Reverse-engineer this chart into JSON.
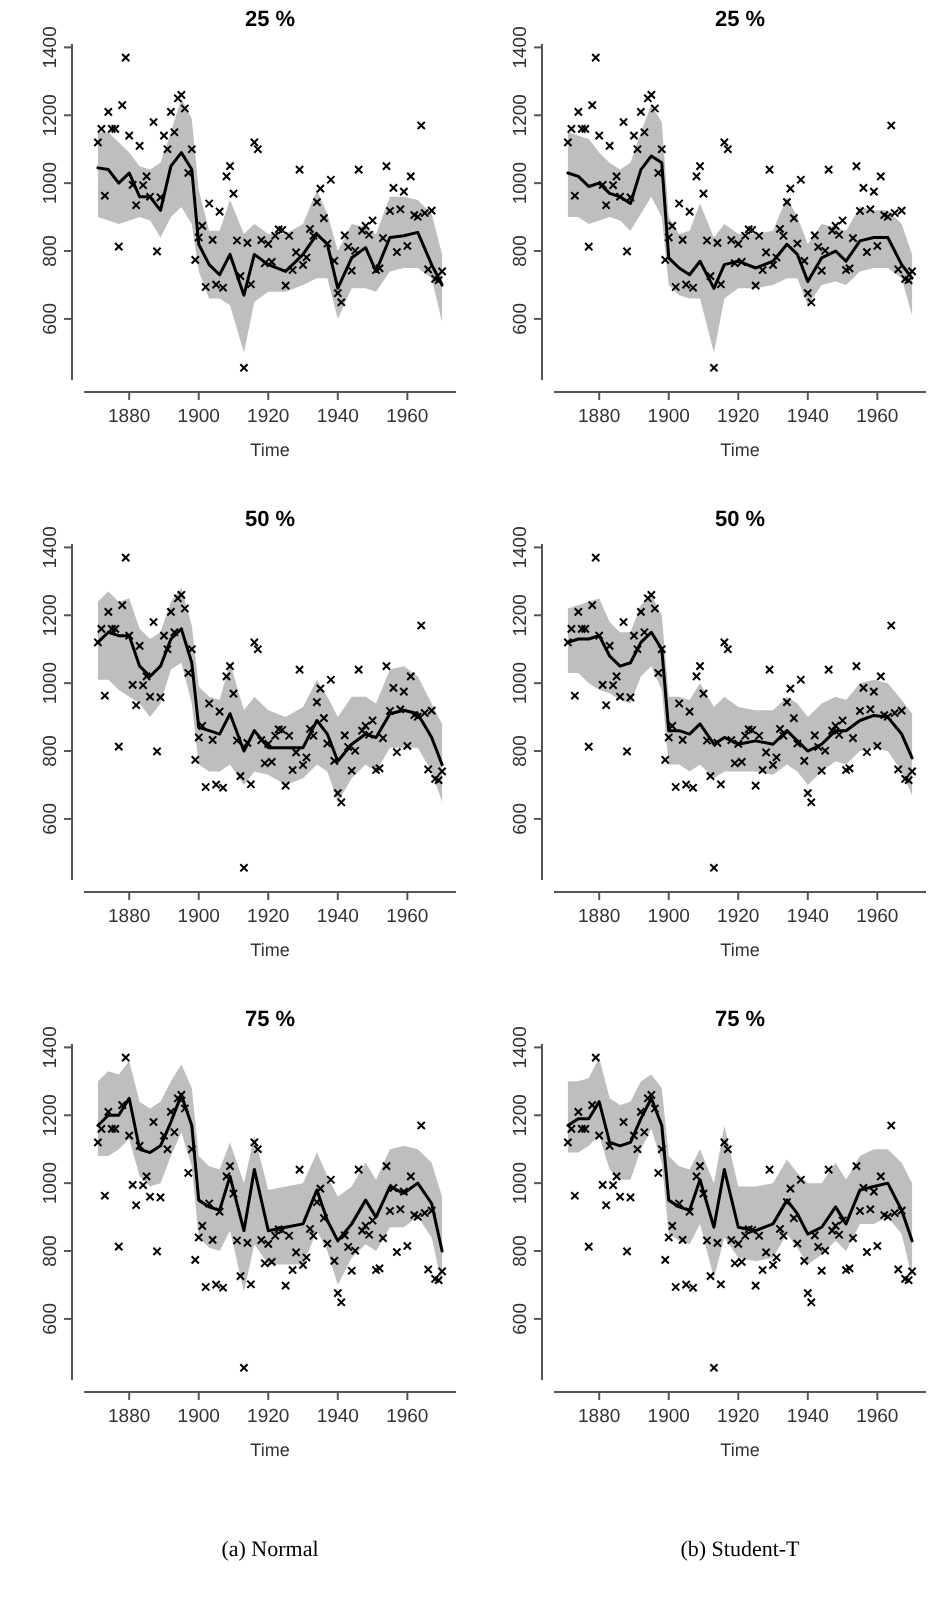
{
  "chart_data": [
    {
      "type": "line",
      "title": "25 %",
      "xlabel": "Time",
      "xlim": [
        1867,
        1974
      ],
      "ylim": [
        420,
        1410
      ],
      "xticks": [
        1880,
        1900,
        1920,
        1940,
        1960
      ],
      "yticks": [
        600,
        800,
        1000,
        1200,
        1400
      ],
      "series": [
        {
          "type": "scatter",
          "marker": "cross",
          "color": "#000000",
          "x": [
            1871,
            1872,
            1873,
            1874,
            1875,
            1876,
            1877,
            1878,
            1879,
            1880,
            1881,
            1882,
            1883,
            1884,
            1885,
            1886,
            1887,
            1888,
            1889,
            1890,
            1891,
            1892,
            1893,
            1894,
            1895,
            1896,
            1897,
            1898,
            1899,
            1900,
            1901,
            1902,
            1903,
            1904,
            1905,
            1906,
            1907,
            1908,
            1909,
            1910,
            1911,
            1912,
            1913,
            1914,
            1915,
            1916,
            1917,
            1918,
            1919,
            1920,
            1921,
            1922,
            1923,
            1924,
            1925,
            1926,
            1927,
            1928,
            1929,
            1930,
            1931,
            1932,
            1933,
            1934,
            1935,
            1936,
            1937,
            1938,
            1939,
            1940,
            1941,
            1942,
            1943,
            1944,
            1945,
            1946,
            1947,
            1948,
            1949,
            1950,
            1951,
            1952,
            1953,
            1954,
            1955,
            1956,
            1957,
            1958,
            1959,
            1960,
            1961,
            1962,
            1963,
            1964,
            1965,
            1966,
            1967,
            1968,
            1969,
            1970
          ],
          "values": [
            1120,
            1160,
            963,
            1210,
            1160,
            1160,
            813,
            1230,
            1370,
            1140,
            995,
            935,
            1110,
            994,
            1020,
            960,
            1180,
            799,
            958,
            1140,
            1100,
            1210,
            1150,
            1250,
            1260,
            1220,
            1030,
            1100,
            774,
            840,
            874,
            694,
            940,
            833,
            701,
            916,
            692,
            1020,
            1050,
            969,
            831,
            726,
            456,
            824,
            702,
            1120,
            1100,
            832,
            764,
            821,
            768,
            845,
            864,
            862,
            698,
            845,
            744,
            796,
            1040,
            759,
            781,
            865,
            845,
            944,
            984,
            897,
            822,
            1010,
            771,
            676,
            649,
            846,
            812,
            742,
            801,
            1040,
            860,
            874,
            848,
            890,
            744,
            749,
            838,
            1050,
            918,
            986,
            797,
            923,
            975,
            815,
            1020,
            906,
            901,
            1170,
            912,
            746,
            919,
            718,
            714,
            740
          ]
        },
        {
          "type": "line",
          "color": "#000000",
          "x": [
            1871,
            1874,
            1877,
            1880,
            1883,
            1886,
            1889,
            1892,
            1895,
            1898,
            1900,
            1903,
            1906,
            1909,
            1913,
            1916,
            1920,
            1925,
            1930,
            1934,
            1937,
            1940,
            1944,
            1948,
            1951,
            1955,
            1959,
            1963,
            1967,
            1970
          ],
          "values": [
            1045,
            1040,
            1000,
            1030,
            960,
            960,
            920,
            1050,
            1090,
            1040,
            820,
            760,
            730,
            790,
            670,
            790,
            760,
            740,
            790,
            850,
            820,
            690,
            780,
            810,
            740,
            840,
            845,
            855,
            760,
            700
          ],
          "lower": [
            900,
            890,
            880,
            890,
            900,
            890,
            840,
            900,
            930,
            880,
            740,
            660,
            660,
            640,
            500,
            650,
            680,
            680,
            700,
            720,
            720,
            600,
            690,
            690,
            680,
            740,
            750,
            750,
            720,
            590
          ],
          "upper": [
            1150,
            1150,
            1120,
            1090,
            1050,
            1040,
            1060,
            1150,
            1250,
            1190,
            980,
            860,
            860,
            950,
            850,
            880,
            850,
            850,
            880,
            980,
            910,
            800,
            880,
            870,
            850,
            960,
            960,
            950,
            910,
            790
          ]
        }
      ]
    },
    {
      "type": "line",
      "title": "25 %",
      "xlabel": "Time",
      "xlim": [
        1867,
        1974
      ],
      "ylim": [
        420,
        1410
      ],
      "xticks": [
        1880,
        1900,
        1920,
        1940,
        1960
      ],
      "yticks": [
        600,
        800,
        1000,
        1200,
        1400
      ],
      "series": [
        {
          "type": "scatter",
          "marker": "cross",
          "color": "#000000",
          "x": [
            1871,
            1872,
            1873,
            1874,
            1875,
            1876,
            1877,
            1878,
            1879,
            1880,
            1881,
            1882,
            1883,
            1884,
            1885,
            1886,
            1887,
            1888,
            1889,
            1890,
            1891,
            1892,
            1893,
            1894,
            1895,
            1896,
            1897,
            1898,
            1899,
            1900,
            1901,
            1902,
            1903,
            1904,
            1905,
            1906,
            1907,
            1908,
            1909,
            1910,
            1911,
            1912,
            1913,
            1914,
            1915,
            1916,
            1917,
            1918,
            1919,
            1920,
            1921,
            1922,
            1923,
            1924,
            1925,
            1926,
            1927,
            1928,
            1929,
            1930,
            1931,
            1932,
            1933,
            1934,
            1935,
            1936,
            1937,
            1938,
            1939,
            1940,
            1941,
            1942,
            1943,
            1944,
            1945,
            1946,
            1947,
            1948,
            1949,
            1950,
            1951,
            1952,
            1953,
            1954,
            1955,
            1956,
            1957,
            1958,
            1959,
            1960,
            1961,
            1962,
            1963,
            1964,
            1965,
            1966,
            1967,
            1968,
            1969,
            1970
          ],
          "values": [
            1120,
            1160,
            963,
            1210,
            1160,
            1160,
            813,
            1230,
            1370,
            1140,
            995,
            935,
            1110,
            994,
            1020,
            960,
            1180,
            799,
            958,
            1140,
            1100,
            1210,
            1150,
            1250,
            1260,
            1220,
            1030,
            1100,
            774,
            840,
            874,
            694,
            940,
            833,
            701,
            916,
            692,
            1020,
            1050,
            969,
            831,
            726,
            456,
            824,
            702,
            1120,
            1100,
            832,
            764,
            821,
            768,
            845,
            864,
            862,
            698,
            845,
            744,
            796,
            1040,
            759,
            781,
            865,
            845,
            944,
            984,
            897,
            822,
            1010,
            771,
            676,
            649,
            846,
            812,
            742,
            801,
            1040,
            860,
            874,
            848,
            890,
            744,
            749,
            838,
            1050,
            918,
            986,
            797,
            923,
            975,
            815,
            1020,
            906,
            901,
            1170,
            912,
            746,
            919,
            718,
            714,
            740
          ]
        },
        {
          "type": "line",
          "color": "#000000",
          "x": [
            1871,
            1874,
            1877,
            1880,
            1883,
            1886,
            1889,
            1892,
            1895,
            1898,
            1900,
            1903,
            1906,
            1909,
            1913,
            1916,
            1920,
            1925,
            1930,
            1934,
            1937,
            1940,
            1944,
            1948,
            1951,
            1955,
            1959,
            1963,
            1967,
            1970
          ],
          "values": [
            1030,
            1020,
            990,
            1000,
            970,
            960,
            940,
            1040,
            1080,
            1060,
            780,
            750,
            730,
            770,
            690,
            760,
            770,
            750,
            770,
            820,
            790,
            710,
            780,
            800,
            770,
            830,
            840,
            840,
            760,
            720
          ],
          "lower": [
            900,
            900,
            880,
            890,
            900,
            890,
            860,
            910,
            960,
            900,
            700,
            670,
            660,
            660,
            500,
            660,
            690,
            690,
            700,
            720,
            720,
            640,
            700,
            710,
            700,
            740,
            750,
            750,
            720,
            610
          ],
          "upper": [
            1150,
            1140,
            1130,
            1090,
            1060,
            1040,
            1060,
            1150,
            1230,
            1180,
            900,
            850,
            860,
            940,
            840,
            880,
            850,
            850,
            860,
            960,
            900,
            820,
            880,
            870,
            860,
            930,
            920,
            920,
            880,
            790
          ]
        }
      ]
    },
    {
      "type": "line",
      "title": "50 %",
      "xlabel": "Time",
      "xlim": [
        1867,
        1974
      ],
      "ylim": [
        420,
        1410
      ],
      "xticks": [
        1880,
        1900,
        1920,
        1940,
        1960
      ],
      "yticks": [
        600,
        800,
        1000,
        1200,
        1400
      ],
      "series": [
        {
          "type": "scatter",
          "marker": "cross",
          "color": "#000000",
          "x": [
            1871,
            1872,
            1873,
            1874,
            1875,
            1876,
            1877,
            1878,
            1879,
            1880,
            1881,
            1882,
            1883,
            1884,
            1885,
            1886,
            1887,
            1888,
            1889,
            1890,
            1891,
            1892,
            1893,
            1894,
            1895,
            1896,
            1897,
            1898,
            1899,
            1900,
            1901,
            1902,
            1903,
            1904,
            1905,
            1906,
            1907,
            1908,
            1909,
            1910,
            1911,
            1912,
            1913,
            1914,
            1915,
            1916,
            1917,
            1918,
            1919,
            1920,
            1921,
            1922,
            1923,
            1924,
            1925,
            1926,
            1927,
            1928,
            1929,
            1930,
            1931,
            1932,
            1933,
            1934,
            1935,
            1936,
            1937,
            1938,
            1939,
            1940,
            1941,
            1942,
            1943,
            1944,
            1945,
            1946,
            1947,
            1948,
            1949,
            1950,
            1951,
            1952,
            1953,
            1954,
            1955,
            1956,
            1957,
            1958,
            1959,
            1960,
            1961,
            1962,
            1963,
            1964,
            1965,
            1966,
            1967,
            1968,
            1969,
            1970
          ],
          "values": [
            1120,
            1160,
            963,
            1210,
            1160,
            1160,
            813,
            1230,
            1370,
            1140,
            995,
            935,
            1110,
            994,
            1020,
            960,
            1180,
            799,
            958,
            1140,
            1100,
            1210,
            1150,
            1250,
            1260,
            1220,
            1030,
            1100,
            774,
            840,
            874,
            694,
            940,
            833,
            701,
            916,
            692,
            1020,
            1050,
            969,
            831,
            726,
            456,
            824,
            702,
            1120,
            1100,
            832,
            764,
            821,
            768,
            845,
            864,
            862,
            698,
            845,
            744,
            796,
            1040,
            759,
            781,
            865,
            845,
            944,
            984,
            897,
            822,
            1010,
            771,
            676,
            649,
            846,
            812,
            742,
            801,
            1040,
            860,
            874,
            848,
            890,
            744,
            749,
            838,
            1050,
            918,
            986,
            797,
            923,
            975,
            815,
            1020,
            906,
            901,
            1170,
            912,
            746,
            919,
            718,
            714,
            740
          ]
        },
        {
          "type": "line",
          "color": "#000000",
          "x": [
            1871,
            1874,
            1877,
            1880,
            1883,
            1886,
            1889,
            1892,
            1895,
            1898,
            1900,
            1903,
            1906,
            1909,
            1913,
            1916,
            1920,
            1925,
            1930,
            1934,
            1937,
            1940,
            1944,
            1948,
            1951,
            1955,
            1959,
            1963,
            1967,
            1970
          ],
          "values": [
            1120,
            1150,
            1140,
            1140,
            1050,
            1020,
            1050,
            1130,
            1160,
            1060,
            870,
            860,
            850,
            910,
            800,
            860,
            810,
            810,
            810,
            890,
            850,
            770,
            820,
            850,
            840,
            910,
            920,
            910,
            840,
            760
          ],
          "lower": [
            1010,
            1010,
            980,
            960,
            940,
            900,
            940,
            1040,
            1060,
            940,
            760,
            740,
            740,
            760,
            700,
            740,
            730,
            700,
            720,
            760,
            740,
            650,
            720,
            760,
            740,
            810,
            810,
            810,
            740,
            650
          ],
          "upper": [
            1240,
            1270,
            1240,
            1250,
            1160,
            1130,
            1150,
            1240,
            1280,
            1170,
            990,
            960,
            950,
            1060,
            920,
            960,
            920,
            900,
            930,
            1010,
            960,
            900,
            960,
            960,
            940,
            1040,
            1050,
            1020,
            940,
            880
          ]
        }
      ]
    },
    {
      "type": "line",
      "title": "50 %",
      "xlabel": "Time",
      "xlim": [
        1867,
        1974
      ],
      "ylim": [
        420,
        1410
      ],
      "xticks": [
        1880,
        1900,
        1920,
        1940,
        1960
      ],
      "yticks": [
        600,
        800,
        1000,
        1200,
        1400
      ],
      "series": [
        {
          "type": "scatter",
          "marker": "cross",
          "color": "#000000",
          "x": [
            1871,
            1872,
            1873,
            1874,
            1875,
            1876,
            1877,
            1878,
            1879,
            1880,
            1881,
            1882,
            1883,
            1884,
            1885,
            1886,
            1887,
            1888,
            1889,
            1890,
            1891,
            1892,
            1893,
            1894,
            1895,
            1896,
            1897,
            1898,
            1899,
            1900,
            1901,
            1902,
            1903,
            1904,
            1905,
            1906,
            1907,
            1908,
            1909,
            1910,
            1911,
            1912,
            1913,
            1914,
            1915,
            1916,
            1917,
            1918,
            1919,
            1920,
            1921,
            1922,
            1923,
            1924,
            1925,
            1926,
            1927,
            1928,
            1929,
            1930,
            1931,
            1932,
            1933,
            1934,
            1935,
            1936,
            1937,
            1938,
            1939,
            1940,
            1941,
            1942,
            1943,
            1944,
            1945,
            1946,
            1947,
            1948,
            1949,
            1950,
            1951,
            1952,
            1953,
            1954,
            1955,
            1956,
            1957,
            1958,
            1959,
            1960,
            1961,
            1962,
            1963,
            1964,
            1965,
            1966,
            1967,
            1968,
            1969,
            1970
          ],
          "values": [
            1120,
            1160,
            963,
            1210,
            1160,
            1160,
            813,
            1230,
            1370,
            1140,
            995,
            935,
            1110,
            994,
            1020,
            960,
            1180,
            799,
            958,
            1140,
            1100,
            1210,
            1150,
            1250,
            1260,
            1220,
            1030,
            1100,
            774,
            840,
            874,
            694,
            940,
            833,
            701,
            916,
            692,
            1020,
            1050,
            969,
            831,
            726,
            456,
            824,
            702,
            1120,
            1100,
            832,
            764,
            821,
            768,
            845,
            864,
            862,
            698,
            845,
            744,
            796,
            1040,
            759,
            781,
            865,
            845,
            944,
            984,
            897,
            822,
            1010,
            771,
            676,
            649,
            846,
            812,
            742,
            801,
            1040,
            860,
            874,
            848,
            890,
            744,
            749,
            838,
            1050,
            918,
            986,
            797,
            923,
            975,
            815,
            1020,
            906,
            901,
            1170,
            912,
            746,
            919,
            718,
            714,
            740
          ]
        },
        {
          "type": "line",
          "color": "#000000",
          "x": [
            1871,
            1874,
            1877,
            1880,
            1883,
            1886,
            1889,
            1892,
            1895,
            1898,
            1900,
            1903,
            1906,
            1909,
            1913,
            1916,
            1920,
            1925,
            1930,
            1934,
            1937,
            1940,
            1944,
            1948,
            1951,
            1955,
            1959,
            1963,
            1967,
            1970
          ],
          "values": [
            1120,
            1130,
            1130,
            1140,
            1080,
            1050,
            1060,
            1120,
            1150,
            1100,
            860,
            860,
            850,
            880,
            820,
            840,
            820,
            830,
            820,
            860,
            830,
            800,
            820,
            860,
            860,
            890,
            905,
            900,
            850,
            780
          ],
          "lower": [
            1030,
            1030,
            1000,
            980,
            970,
            950,
            940,
            1020,
            1050,
            980,
            760,
            760,
            740,
            760,
            720,
            740,
            740,
            740,
            730,
            760,
            740,
            700,
            740,
            770,
            760,
            800,
            810,
            800,
            740,
            670
          ],
          "upper": [
            1220,
            1230,
            1240,
            1250,
            1180,
            1150,
            1150,
            1230,
            1260,
            1200,
            960,
            960,
            950,
            1000,
            930,
            960,
            930,
            920,
            920,
            960,
            940,
            900,
            940,
            960,
            950,
            1000,
            1010,
            1000,
            950,
            910
          ]
        }
      ]
    },
    {
      "type": "line",
      "title": "75 %",
      "xlabel": "Time",
      "xlim": [
        1867,
        1974
      ],
      "ylim": [
        420,
        1410
      ],
      "xticks": [
        1880,
        1900,
        1920,
        1940,
        1960
      ],
      "yticks": [
        600,
        800,
        1000,
        1200,
        1400
      ],
      "annotations": [
        "(a) Normal"
      ],
      "series": [
        {
          "type": "scatter",
          "marker": "cross",
          "color": "#000000",
          "x": [
            1871,
            1872,
            1873,
            1874,
            1875,
            1876,
            1877,
            1878,
            1879,
            1880,
            1881,
            1882,
            1883,
            1884,
            1885,
            1886,
            1887,
            1888,
            1889,
            1890,
            1891,
            1892,
            1893,
            1894,
            1895,
            1896,
            1897,
            1898,
            1899,
            1900,
            1901,
            1902,
            1903,
            1904,
            1905,
            1906,
            1907,
            1908,
            1909,
            1910,
            1911,
            1912,
            1913,
            1914,
            1915,
            1916,
            1917,
            1918,
            1919,
            1920,
            1921,
            1922,
            1923,
            1924,
            1925,
            1926,
            1927,
            1928,
            1929,
            1930,
            1931,
            1932,
            1933,
            1934,
            1935,
            1936,
            1937,
            1938,
            1939,
            1940,
            1941,
            1942,
            1943,
            1944,
            1945,
            1946,
            1947,
            1948,
            1949,
            1950,
            1951,
            1952,
            1953,
            1954,
            1955,
            1956,
            1957,
            1958,
            1959,
            1960,
            1961,
            1962,
            1963,
            1964,
            1965,
            1966,
            1967,
            1968,
            1969,
            1970
          ],
          "values": [
            1120,
            1160,
            963,
            1210,
            1160,
            1160,
            813,
            1230,
            1370,
            1140,
            995,
            935,
            1110,
            994,
            1020,
            960,
            1180,
            799,
            958,
            1140,
            1100,
            1210,
            1150,
            1250,
            1260,
            1220,
            1030,
            1100,
            774,
            840,
            874,
            694,
            940,
            833,
            701,
            916,
            692,
            1020,
            1050,
            969,
            831,
            726,
            456,
            824,
            702,
            1120,
            1100,
            832,
            764,
            821,
            768,
            845,
            864,
            862,
            698,
            845,
            744,
            796,
            1040,
            759,
            781,
            865,
            845,
            944,
            984,
            897,
            822,
            1010,
            771,
            676,
            649,
            846,
            812,
            742,
            801,
            1040,
            860,
            874,
            848,
            890,
            744,
            749,
            838,
            1050,
            918,
            986,
            797,
            923,
            975,
            815,
            1020,
            906,
            901,
            1170,
            912,
            746,
            919,
            718,
            714,
            740
          ]
        },
        {
          "type": "line",
          "color": "#000000",
          "x": [
            1871,
            1874,
            1877,
            1880,
            1883,
            1886,
            1889,
            1892,
            1895,
            1898,
            1900,
            1903,
            1906,
            1909,
            1913,
            1916,
            1920,
            1925,
            1930,
            1934,
            1937,
            1940,
            1944,
            1948,
            1951,
            1955,
            1959,
            1963,
            1967,
            1970
          ],
          "values": [
            1170,
            1200,
            1200,
            1250,
            1100,
            1090,
            1110,
            1180,
            1260,
            1170,
            950,
            930,
            920,
            1020,
            860,
            1040,
            860,
            870,
            880,
            980,
            890,
            830,
            880,
            950,
            900,
            990,
            970,
            1000,
            940,
            800
          ],
          "lower": [
            1080,
            1080,
            1100,
            1130,
            1020,
            990,
            1000,
            1080,
            1150,
            1050,
            840,
            810,
            800,
            860,
            680,
            820,
            760,
            760,
            760,
            860,
            800,
            700,
            780,
            820,
            800,
            870,
            870,
            900,
            840,
            700
          ],
          "upper": [
            1300,
            1330,
            1320,
            1360,
            1240,
            1220,
            1240,
            1300,
            1350,
            1280,
            1080,
            1050,
            1040,
            1120,
            1000,
            1140,
            980,
            990,
            1000,
            1090,
            1020,
            960,
            990,
            1060,
            1010,
            1100,
            1110,
            1100,
            1060,
            960
          ]
        }
      ]
    },
    {
      "type": "line",
      "title": "75 %",
      "xlabel": "Time",
      "xlim": [
        1867,
        1974
      ],
      "ylim": [
        420,
        1410
      ],
      "xticks": [
        1880,
        1900,
        1920,
        1940,
        1960
      ],
      "yticks": [
        600,
        800,
        1000,
        1200,
        1400
      ],
      "annotations": [
        "(b) Student-T"
      ],
      "series": [
        {
          "type": "scatter",
          "marker": "cross",
          "color": "#000000",
          "x": [
            1871,
            1872,
            1873,
            1874,
            1875,
            1876,
            1877,
            1878,
            1879,
            1880,
            1881,
            1882,
            1883,
            1884,
            1885,
            1886,
            1887,
            1888,
            1889,
            1890,
            1891,
            1892,
            1893,
            1894,
            1895,
            1896,
            1897,
            1898,
            1899,
            1900,
            1901,
            1902,
            1903,
            1904,
            1905,
            1906,
            1907,
            1908,
            1909,
            1910,
            1911,
            1912,
            1913,
            1914,
            1915,
            1916,
            1917,
            1918,
            1919,
            1920,
            1921,
            1922,
            1923,
            1924,
            1925,
            1926,
            1927,
            1928,
            1929,
            1930,
            1931,
            1932,
            1933,
            1934,
            1935,
            1936,
            1937,
            1938,
            1939,
            1940,
            1941,
            1942,
            1943,
            1944,
            1945,
            1946,
            1947,
            1948,
            1949,
            1950,
            1951,
            1952,
            1953,
            1954,
            1955,
            1956,
            1957,
            1958,
            1959,
            1960,
            1961,
            1962,
            1963,
            1964,
            1965,
            1966,
            1967,
            1968,
            1969,
            1970
          ],
          "values": [
            1120,
            1160,
            963,
            1210,
            1160,
            1160,
            813,
            1230,
            1370,
            1140,
            995,
            935,
            1110,
            994,
            1020,
            960,
            1180,
            799,
            958,
            1140,
            1100,
            1210,
            1150,
            1250,
            1260,
            1220,
            1030,
            1100,
            774,
            840,
            874,
            694,
            940,
            833,
            701,
            916,
            692,
            1020,
            1050,
            969,
            831,
            726,
            456,
            824,
            702,
            1120,
            1100,
            832,
            764,
            821,
            768,
            845,
            864,
            862,
            698,
            845,
            744,
            796,
            1040,
            759,
            781,
            865,
            845,
            944,
            984,
            897,
            822,
            1010,
            771,
            676,
            649,
            846,
            812,
            742,
            801,
            1040,
            860,
            874,
            848,
            890,
            744,
            749,
            838,
            1050,
            918,
            986,
            797,
            923,
            975,
            815,
            1020,
            906,
            901,
            1170,
            912,
            746,
            919,
            718,
            714,
            740
          ]
        },
        {
          "type": "line",
          "color": "#000000",
          "x": [
            1871,
            1874,
            1877,
            1880,
            1883,
            1886,
            1889,
            1892,
            1895,
            1898,
            1900,
            1903,
            1906,
            1909,
            1913,
            1916,
            1920,
            1925,
            1930,
            1934,
            1937,
            1940,
            1944,
            1948,
            1951,
            1955,
            1959,
            1963,
            1967,
            1970
          ],
          "values": [
            1170,
            1190,
            1190,
            1240,
            1120,
            1110,
            1120,
            1190,
            1250,
            1170,
            950,
            930,
            920,
            1010,
            870,
            1040,
            870,
            860,
            880,
            950,
            910,
            850,
            870,
            930,
            880,
            980,
            990,
            1000,
            920,
            830
          ],
          "lower": [
            1090,
            1090,
            1110,
            1140,
            1040,
            1010,
            1010,
            1100,
            1160,
            1060,
            850,
            830,
            820,
            880,
            720,
            840,
            780,
            770,
            780,
            850,
            810,
            760,
            790,
            830,
            800,
            880,
            880,
            900,
            850,
            720
          ],
          "upper": [
            1300,
            1300,
            1310,
            1370,
            1250,
            1230,
            1240,
            1300,
            1320,
            1280,
            1080,
            1050,
            1040,
            1100,
            1000,
            1170,
            990,
            990,
            1000,
            1070,
            1030,
            1000,
            1000,
            1060,
            1010,
            1080,
            1100,
            1100,
            1060,
            1000
          ]
        }
      ]
    }
  ]
}
